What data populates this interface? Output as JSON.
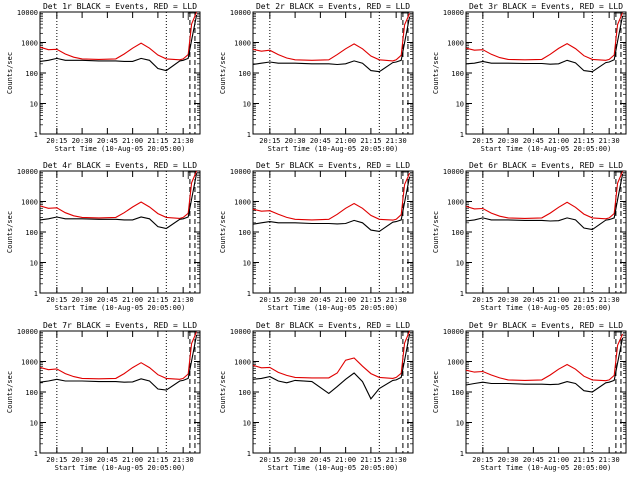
{
  "figure": {
    "xlabel": "Start Time (10-Aug-05 20:05:00)",
    "ylabel": "Counts/sec"
  },
  "colors": {
    "events": "#000000",
    "lld": "#e00000",
    "axes": "#000000"
  },
  "chart_data": [
    {
      "type": "line",
      "title": "Det 1r BLACK = Events, RED = LLD",
      "xlabel": "Start Time (10-Aug-05 20:05:00)",
      "ylabel": "Counts/sec",
      "x_ticks": [
        "20:15",
        "20:30",
        "20:45",
        "21:00",
        "21:15",
        "21:30"
      ],
      "y_ticks": [
        "1",
        "10",
        "100",
        "1000",
        "10000"
      ],
      "y_scale": "log",
      "ylim": [
        1,
        10000
      ],
      "x": [
        "20:05",
        "20:10",
        "20:15",
        "20:20",
        "20:25",
        "20:30",
        "20:40",
        "20:50",
        "20:55",
        "21:00",
        "21:05",
        "21:10",
        "21:15",
        "21:20",
        "21:28",
        "21:30",
        "21:33",
        "21:35",
        "21:38"
      ],
      "series": [
        {
          "name": "Events",
          "values": [
            240,
            260,
            300,
            260,
            260,
            260,
            250,
            250,
            240,
            240,
            300,
            260,
            140,
            120,
            250,
            260,
            300,
            1200,
            8000
          ]
        },
        {
          "name": "LLD",
          "values": [
            700,
            580,
            600,
            420,
            330,
            290,
            280,
            290,
            420,
            650,
            950,
            650,
            390,
            290,
            270,
            290,
            400,
            4000,
            10000
          ]
        }
      ],
      "grid": false,
      "legend_position": "none"
    },
    {
      "type": "line",
      "title": "Det 2r BLACK = Events, RED = LLD",
      "xlabel": "Start Time (10-Aug-05 20:05:00)",
      "ylabel": "Counts/sec",
      "x_ticks": [
        "20:15",
        "20:30",
        "20:45",
        "21:00",
        "21:15",
        "21:30"
      ],
      "y_ticks": [
        "1",
        "10",
        "100",
        "1000",
        "10000"
      ],
      "y_scale": "log",
      "ylim": [
        1,
        10000
      ],
      "x": [
        "20:05",
        "20:10",
        "20:15",
        "20:20",
        "20:25",
        "20:30",
        "20:40",
        "20:50",
        "20:55",
        "21:00",
        "21:05",
        "21:10",
        "21:15",
        "21:20",
        "21:28",
        "21:30",
        "21:33",
        "21:35",
        "21:38"
      ],
      "series": [
        {
          "name": "Events",
          "values": [
            190,
            210,
            230,
            210,
            210,
            210,
            200,
            200,
            190,
            200,
            250,
            210,
            120,
            110,
            220,
            230,
            260,
            1000,
            7000
          ]
        },
        {
          "name": "LLD",
          "values": [
            600,
            520,
            560,
            400,
            310,
            270,
            260,
            270,
            400,
            620,
            900,
            620,
            360,
            270,
            250,
            270,
            380,
            3800,
            9000
          ]
        }
      ],
      "grid": false,
      "legend_position": "none"
    },
    {
      "type": "line",
      "title": "Det 3r BLACK = Events, RED = LLD",
      "xlabel": "Start Time (10-Aug-05 20:05:00)",
      "ylabel": "Counts/sec",
      "x_ticks": [
        "20:15",
        "20:30",
        "20:45",
        "21:00",
        "21:15",
        "21:30"
      ],
      "y_ticks": [
        "1",
        "10",
        "100",
        "1000",
        "10000"
      ],
      "y_scale": "log",
      "ylim": [
        1,
        10000
      ],
      "x": [
        "20:05",
        "20:10",
        "20:15",
        "20:20",
        "20:25",
        "20:30",
        "20:40",
        "20:50",
        "20:55",
        "21:00",
        "21:05",
        "21:10",
        "21:15",
        "21:20",
        "21:28",
        "21:30",
        "21:33",
        "21:35",
        "21:38"
      ],
      "series": [
        {
          "name": "Events",
          "values": [
            200,
            210,
            240,
            210,
            210,
            210,
            205,
            205,
            195,
            200,
            260,
            215,
            120,
            110,
            220,
            230,
            270,
            1100,
            7500
          ]
        },
        {
          "name": "LLD",
          "values": [
            650,
            560,
            580,
            410,
            320,
            280,
            270,
            280,
            410,
            640,
            920,
            630,
            370,
            280,
            260,
            280,
            390,
            3900,
            9500
          ]
        }
      ],
      "grid": false,
      "legend_position": "none"
    },
    {
      "type": "line",
      "title": "Det 4r BLACK = Events, RED = LLD",
      "xlabel": "Start Time (10-Aug-05 20:05:00)",
      "ylabel": "Counts/sec",
      "x_ticks": [
        "20:15",
        "20:30",
        "20:45",
        "21:00",
        "21:15",
        "21:30"
      ],
      "y_ticks": [
        "1",
        "10",
        "100",
        "1000",
        "10000"
      ],
      "y_scale": "log",
      "ylim": [
        1,
        10000
      ],
      "x": [
        "20:05",
        "20:10",
        "20:15",
        "20:20",
        "20:25",
        "20:30",
        "20:40",
        "20:50",
        "20:55",
        "21:00",
        "21:05",
        "21:10",
        "21:15",
        "21:20",
        "21:28",
        "21:30",
        "21:33",
        "21:35",
        "21:38"
      ],
      "series": [
        {
          "name": "Events",
          "values": [
            250,
            270,
            310,
            270,
            270,
            270,
            260,
            260,
            250,
            250,
            310,
            270,
            150,
            130,
            260,
            270,
            310,
            1200,
            8500
          ]
        },
        {
          "name": "LLD",
          "values": [
            720,
            600,
            620,
            430,
            340,
            300,
            290,
            300,
            430,
            660,
            960,
            660,
            400,
            300,
            280,
            300,
            410,
            4100,
            10000
          ]
        }
      ],
      "grid": false,
      "legend_position": "none"
    },
    {
      "type": "line",
      "title": "Det 5r BLACK = Events, RED = LLD",
      "xlabel": "Start Time (10-Aug-05 20:05:00)",
      "ylabel": "Counts/sec",
      "x_ticks": [
        "20:15",
        "20:30",
        "20:45",
        "21:00",
        "21:15",
        "21:30"
      ],
      "y_ticks": [
        "1",
        "10",
        "100",
        "1000",
        "10000"
      ],
      "y_scale": "log",
      "ylim": [
        1,
        10000
      ],
      "x": [
        "20:05",
        "20:10",
        "20:15",
        "20:20",
        "20:25",
        "20:30",
        "20:40",
        "20:50",
        "20:55",
        "21:00",
        "21:05",
        "21:10",
        "21:15",
        "21:20",
        "21:28",
        "21:30",
        "21:33",
        "21:35",
        "21:38"
      ],
      "series": [
        {
          "name": "Events",
          "values": [
            180,
            200,
            220,
            200,
            200,
            200,
            190,
            190,
            185,
            190,
            240,
            200,
            115,
            105,
            210,
            220,
            250,
            950,
            6500
          ]
        },
        {
          "name": "LLD",
          "values": [
            560,
            480,
            500,
            380,
            300,
            260,
            250,
            260,
            380,
            600,
            860,
            600,
            350,
            260,
            245,
            260,
            370,
            3600,
            8500
          ]
        }
      ],
      "grid": false,
      "legend_position": "none"
    },
    {
      "type": "line",
      "title": "Det 6r BLACK = Events, RED = LLD",
      "xlabel": "Start Time (10-Aug-05 20:05:00)",
      "ylabel": "Counts/sec",
      "x_ticks": [
        "20:15",
        "20:30",
        "20:45",
        "21:00",
        "21:15",
        "21:30"
      ],
      "y_ticks": [
        "1",
        "10",
        "100",
        "1000",
        "10000"
      ],
      "y_scale": "log",
      "ylim": [
        1,
        10000
      ],
      "x": [
        "20:05",
        "20:10",
        "20:15",
        "20:20",
        "20:25",
        "20:30",
        "20:40",
        "20:50",
        "20:55",
        "21:00",
        "21:05",
        "21:10",
        "21:15",
        "21:20",
        "21:28",
        "21:30",
        "21:33",
        "21:35",
        "21:38"
      ],
      "series": [
        {
          "name": "Events",
          "values": [
            230,
            250,
            290,
            250,
            250,
            250,
            240,
            240,
            230,
            235,
            290,
            250,
            135,
            120,
            245,
            255,
            290,
            1150,
            8000
          ]
        },
        {
          "name": "LLD",
          "values": [
            690,
            570,
            590,
            415,
            330,
            290,
            280,
            290,
            415,
            645,
            940,
            645,
            385,
            290,
            270,
            290,
            400,
            4000,
            9800
          ]
        }
      ],
      "grid": false,
      "legend_position": "none"
    },
    {
      "type": "line",
      "title": "Det 7r BLACK = Events, RED = LLD",
      "xlabel": "Start Time (10-Aug-05 20:05:00)",
      "ylabel": "Counts/sec",
      "x_ticks": [
        "20:15",
        "20:30",
        "20:45",
        "21:00",
        "21:15",
        "21:30"
      ],
      "y_ticks": [
        "1",
        "10",
        "100",
        "1000",
        "10000"
      ],
      "y_scale": "log",
      "ylim": [
        1,
        10000
      ],
      "x": [
        "20:05",
        "20:10",
        "20:15",
        "20:20",
        "20:25",
        "20:30",
        "20:40",
        "20:50",
        "20:55",
        "21:00",
        "21:05",
        "21:10",
        "21:15",
        "21:20",
        "21:28",
        "21:30",
        "21:33",
        "21:35",
        "21:38"
      ],
      "series": [
        {
          "name": "Events",
          "values": [
            210,
            230,
            260,
            230,
            230,
            230,
            220,
            220,
            210,
            215,
            270,
            230,
            125,
            115,
            230,
            240,
            280,
            1050,
            7500
          ]
        },
        {
          "name": "LLD",
          "values": [
            640,
            540,
            570,
            400,
            320,
            280,
            270,
            280,
            400,
            630,
            910,
            630,
            370,
            280,
            260,
            280,
            390,
            3900,
            9500
          ]
        }
      ],
      "grid": false,
      "legend_position": "none"
    },
    {
      "type": "line",
      "title": "Det 8r BLACK = Events, RED = LLD",
      "xlabel": "Start Time (10-Aug-05 20:05:00)",
      "ylabel": "Counts/sec",
      "x_ticks": [
        "20:15",
        "20:30",
        "20:45",
        "21:00",
        "21:15",
        "21:30"
      ],
      "y_ticks": [
        "1",
        "10",
        "100",
        "1000",
        "10000"
      ],
      "y_scale": "log",
      "ylim": [
        1,
        10000
      ],
      "x": [
        "20:05",
        "20:10",
        "20:15",
        "20:20",
        "20:25",
        "20:30",
        "20:40",
        "20:50",
        "20:55",
        "21:00",
        "21:05",
        "21:10",
        "21:15",
        "21:20",
        "21:28",
        "21:30",
        "21:33",
        "21:35",
        "21:38"
      ],
      "series": [
        {
          "name": "Events",
          "values": [
            260,
            280,
            320,
            230,
            200,
            240,
            220,
            90,
            150,
            260,
            420,
            220,
            60,
            130,
            240,
            250,
            300,
            1100,
            8000
          ]
        },
        {
          "name": "LLD",
          "values": [
            750,
            620,
            640,
            440,
            350,
            300,
            290,
            290,
            420,
            1100,
            1300,
            700,
            400,
            300,
            280,
            300,
            410,
            4000,
            10000
          ]
        }
      ],
      "grid": false,
      "legend_position": "none"
    },
    {
      "type": "line",
      "title": "Det 9r BLACK = Events, RED = LLD",
      "xlabel": "Start Time (10-Aug-05 20:05:00)",
      "ylabel": "Counts/sec",
      "x_ticks": [
        "20:15",
        "20:30",
        "20:45",
        "21:00",
        "21:15",
        "21:30"
      ],
      "y_ticks": [
        "1",
        "10",
        "100",
        "1000",
        "10000"
      ],
      "y_scale": "log",
      "ylim": [
        1,
        10000
      ],
      "x": [
        "20:05",
        "20:10",
        "20:15",
        "20:20",
        "20:25",
        "20:30",
        "20:40",
        "20:50",
        "20:55",
        "21:00",
        "21:05",
        "21:10",
        "21:15",
        "21:20",
        "21:28",
        "21:30",
        "21:33",
        "21:35",
        "21:38"
      ],
      "series": [
        {
          "name": "Events",
          "values": [
            170,
            190,
            210,
            190,
            190,
            190,
            180,
            180,
            175,
            180,
            220,
            190,
            110,
            100,
            200,
            210,
            240,
            900,
            6000
          ]
        },
        {
          "name": "LLD",
          "values": [
            520,
            450,
            470,
            360,
            290,
            250,
            240,
            250,
            360,
            560,
            800,
            560,
            330,
            250,
            235,
            250,
            350,
            3400,
            8000
          ]
        }
      ],
      "grid": false,
      "legend_position": "none"
    }
  ]
}
